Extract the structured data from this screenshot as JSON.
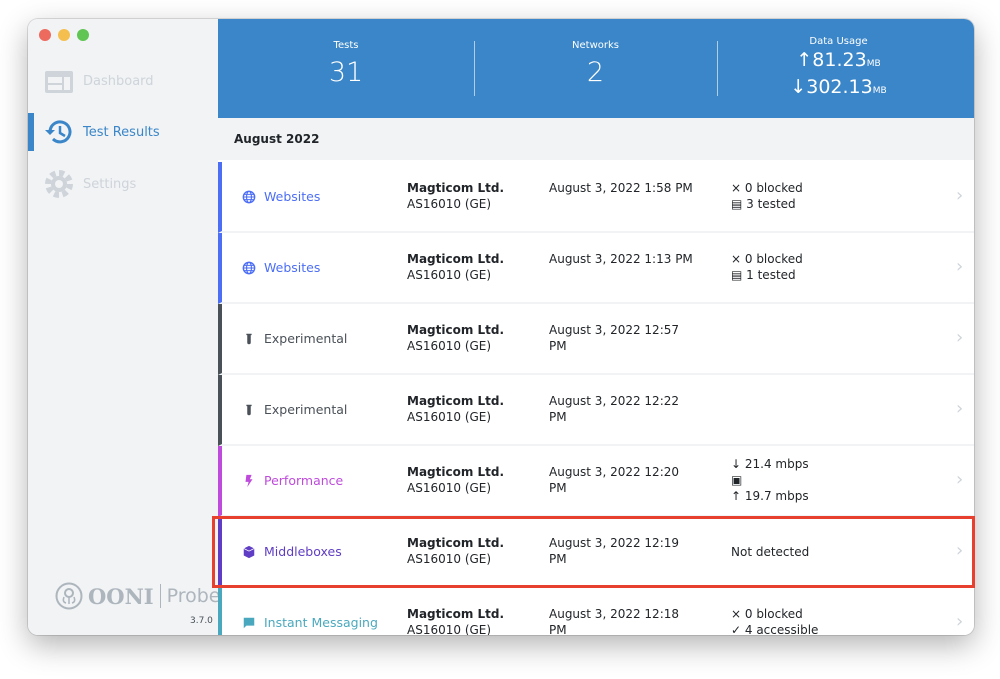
{
  "sidebar": {
    "items": [
      {
        "label": "Dashboard",
        "icon": "dashboard-icon",
        "active": false
      },
      {
        "label": "Test Results",
        "icon": "history-icon",
        "active": true
      },
      {
        "label": "Settings",
        "icon": "gear-icon",
        "active": false
      }
    ],
    "logo": "OONI | Probe",
    "logo_ooni": "OONI",
    "logo_probe": "Probe",
    "version": "3.7.0"
  },
  "header": {
    "tests_label": "Tests",
    "tests": "31",
    "networks_label": "Networks",
    "networks": "2",
    "data_label": "Data Usage",
    "upload": "81.23",
    "download": "302.13",
    "unit": "MB"
  },
  "section": "August 2022",
  "colors": {
    "websites": "#4c6ef5",
    "experimental": "#495057",
    "performance": "#be4bdb",
    "middleboxes": "#5f3dc4",
    "im": "#4aa8be",
    "header": "#3a86c8",
    "highlight": "#e8402e"
  },
  "rows": [
    {
      "name": "Websites",
      "type": "websites",
      "network": "Magticom Ltd.",
      "asn": "AS16010 (GE)",
      "date": "August 3, 2022 1:58 PM",
      "r1": "× 0 blocked",
      "r2": "3 tested"
    },
    {
      "name": "Websites",
      "type": "websites",
      "network": "Magticom Ltd.",
      "asn": "AS16010 (GE)",
      "date": "August 3, 2022 1:13 PM",
      "r1": "× 0 blocked",
      "r2": "1 tested"
    },
    {
      "name": "Experimental",
      "type": "experimental",
      "network": "Magticom Ltd.",
      "asn": "AS16010 (GE)",
      "date": "August 3, 2022 12:57 PM"
    },
    {
      "name": "Experimental",
      "type": "experimental",
      "network": "Magticom Ltd.",
      "asn": "AS16010 (GE)",
      "date": "August 3, 2022 12:22 PM"
    },
    {
      "name": "Performance",
      "type": "performance",
      "network": "Magticom Ltd.",
      "asn": "AS16010 (GE)",
      "date": "August 3, 2022 12:20 PM",
      "r1": "↓ 21.4 mbps",
      "r3": "↑ 19.7 mbps"
    },
    {
      "name": "Middleboxes",
      "type": "middleboxes",
      "network": "Magticom Ltd.",
      "asn": "AS16010 (GE)",
      "date": "August 3, 2022 12:19 PM",
      "r1": "Not detected"
    },
    {
      "name": "Instant Messaging",
      "type": "im",
      "network": "Magticom Ltd.",
      "asn": "AS16010 (GE)",
      "date": "August 3, 2022 12:18 PM",
      "r1": "× 0 blocked",
      "r2": "✓ 4 accessible"
    }
  ]
}
